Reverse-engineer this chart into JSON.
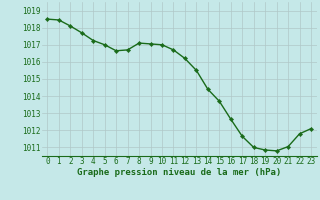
{
  "x": [
    0,
    1,
    2,
    3,
    4,
    5,
    6,
    7,
    8,
    9,
    10,
    11,
    12,
    13,
    14,
    15,
    16,
    17,
    18,
    19,
    20,
    21,
    22,
    23
  ],
  "y": [
    1018.5,
    1018.45,
    1018.1,
    1017.7,
    1017.25,
    1017.0,
    1016.65,
    1016.7,
    1017.1,
    1017.05,
    1017.0,
    1016.7,
    1016.2,
    1015.5,
    1014.4,
    1013.7,
    1012.65,
    1011.65,
    1011.0,
    1010.85,
    1010.8,
    1011.05,
    1011.8,
    1012.1
  ],
  "line_color": "#1a6b1a",
  "marker": "D",
  "marker_size": 2.2,
  "line_width": 1.0,
  "background_color": "#c5e8e8",
  "grid_color_major": "#b0c8c8",
  "grid_color_minor": "#d0e4e4",
  "xlabel": "Graphe pression niveau de la mer (hPa)",
  "xlabel_fontsize": 6.5,
  "xlabel_color": "#1a6b1a",
  "tick_label_color": "#1a6b1a",
  "tick_fontsize": 5.5,
  "ylim": [
    1010.5,
    1019.5
  ],
  "xlim": [
    -0.5,
    23.5
  ],
  "yticks": [
    1011,
    1012,
    1013,
    1014,
    1015,
    1016,
    1017,
    1018,
    1019
  ],
  "xticks": [
    0,
    1,
    2,
    3,
    4,
    5,
    6,
    7,
    8,
    9,
    10,
    11,
    12,
    13,
    14,
    15,
    16,
    17,
    18,
    19,
    20,
    21,
    22,
    23
  ]
}
